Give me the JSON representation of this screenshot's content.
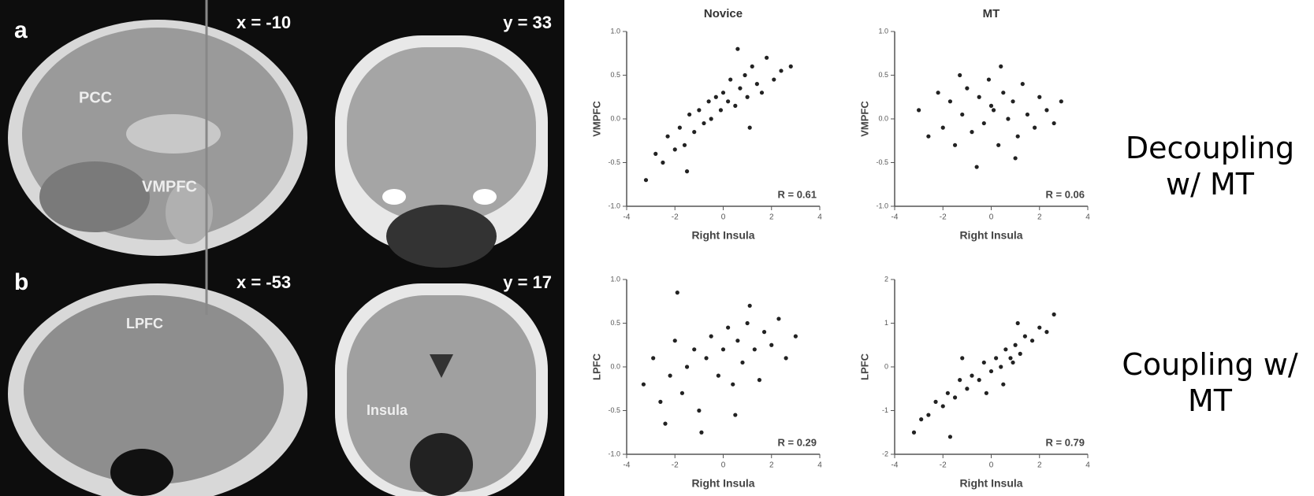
{
  "brain_panels": {
    "a": {
      "letter": "a",
      "sagittal_coord": "x = -10",
      "coronal_coord": "y = 33",
      "labels": [
        "PCC",
        "VMPFC"
      ]
    },
    "b": {
      "letter": "b",
      "sagittal_coord": "x = -53",
      "coronal_coord": "y = 17",
      "labels": [
        "LPFC",
        "Insula"
      ]
    }
  },
  "side_notes": [
    "Decoupling w/ MT",
    "Coupling w/ MT"
  ],
  "chart_data": [
    {
      "type": "scatter",
      "title": "Novice",
      "x_label": "Right Insula",
      "y_label": "VMPFC",
      "annotation": "R = 0.61",
      "color": "#222222",
      "xlim": [
        -4,
        4
      ],
      "ylim": [
        -1,
        1
      ],
      "xticks": [
        -4,
        -2,
        0,
        2,
        4
      ],
      "yticks": [
        {
          "value": -1,
          "label": "-1.0"
        },
        {
          "value": -0.5,
          "label": "-0.5"
        },
        {
          "value": 0,
          "label": "0.0"
        },
        {
          "value": 0.5,
          "label": "0.5"
        },
        {
          "value": 1,
          "label": "1.0"
        }
      ],
      "x": [
        -3.2,
        -2.8,
        -2.5,
        -2.3,
        -2.0,
        -1.8,
        -1.6,
        -1.4,
        -1.2,
        -1.0,
        -0.8,
        -0.6,
        -0.5,
        -0.3,
        -0.1,
        0,
        0.2,
        0.3,
        0.5,
        0.7,
        0.9,
        1.0,
        1.2,
        1.4,
        1.6,
        1.8,
        2.1,
        2.4,
        2.8,
        -1.5,
        0.6,
        1.1
      ],
      "values": [
        -0.7,
        -0.4,
        -0.5,
        -0.2,
        -0.35,
        -0.1,
        -0.3,
        0.05,
        -0.15,
        0.1,
        -0.05,
        0.2,
        0.0,
        0.25,
        0.1,
        0.3,
        0.2,
        0.45,
        0.15,
        0.35,
        0.5,
        0.25,
        0.6,
        0.4,
        0.3,
        0.7,
        0.45,
        0.55,
        0.6,
        -0.6,
        0.8,
        -0.1
      ]
    },
    {
      "type": "scatter",
      "title": "MT",
      "x_label": "Right Insula",
      "y_label": "VMPFC",
      "annotation": "R = 0.06",
      "color": "#222222",
      "xlim": [
        -4,
        4
      ],
      "ylim": [
        -1,
        1
      ],
      "xticks": [
        -4,
        -2,
        0,
        2,
        4
      ],
      "yticks": [
        {
          "value": -1,
          "label": "-1.0"
        },
        {
          "value": -0.5,
          "label": "-0.5"
        },
        {
          "value": 0,
          "label": "0.0"
        },
        {
          "value": 0.5,
          "label": "0.5"
        },
        {
          "value": 1,
          "label": "1.0"
        }
      ],
      "x": [
        -3.0,
        -2.6,
        -2.2,
        -2.0,
        -1.7,
        -1.5,
        -1.2,
        -1.0,
        -0.8,
        -0.5,
        -0.3,
        -0.1,
        0.1,
        0.3,
        0.5,
        0.7,
        0.9,
        1.1,
        1.3,
        1.5,
        1.8,
        2.0,
        2.3,
        2.6,
        -0.6,
        0.4,
        1.0,
        -1.3,
        0.0,
        2.9
      ],
      "values": [
        0.1,
        -0.2,
        0.3,
        -0.1,
        0.2,
        -0.3,
        0.05,
        0.35,
        -0.15,
        0.25,
        -0.05,
        0.45,
        0.1,
        -0.3,
        0.3,
        0.0,
        0.2,
        -0.2,
        0.4,
        0.05,
        -0.1,
        0.25,
        0.1,
        -0.05,
        -0.55,
        0.6,
        -0.45,
        0.5,
        0.15,
        0.2
      ]
    },
    {
      "type": "scatter",
      "x_label": "Right Insula",
      "y_label": "LPFC",
      "annotation": "R = 0.29",
      "color": "#222222",
      "xlim": [
        -4,
        4
      ],
      "ylim": [
        -1,
        1
      ],
      "xticks": [
        -4,
        -2,
        0,
        2,
        4
      ],
      "yticks": [
        {
          "value": -1,
          "label": "-1.0"
        },
        {
          "value": -0.5,
          "label": "-0.5"
        },
        {
          "value": 0,
          "label": "0.0"
        },
        {
          "value": 0.5,
          "label": "0.5"
        },
        {
          "value": 1,
          "label": "1.0"
        }
      ],
      "x": [
        -3.3,
        -2.9,
        -2.6,
        -2.2,
        -2.0,
        -1.7,
        -1.5,
        -1.2,
        -1.0,
        -0.7,
        -0.5,
        -0.2,
        0,
        0.2,
        0.4,
        0.6,
        0.8,
        1.0,
        1.3,
        1.5,
        1.7,
        2.0,
        2.3,
        2.6,
        3.0,
        -1.9,
        -0.9,
        0.5,
        1.1,
        -2.4
      ],
      "values": [
        -0.2,
        0.1,
        -0.4,
        -0.1,
        0.3,
        -0.3,
        0.0,
        0.2,
        -0.5,
        0.1,
        0.35,
        -0.1,
        0.2,
        0.45,
        -0.2,
        0.3,
        0.05,
        0.5,
        0.2,
        -0.15,
        0.4,
        0.25,
        0.55,
        0.1,
        0.35,
        0.85,
        -0.75,
        -0.55,
        0.7,
        -0.65
      ]
    },
    {
      "type": "scatter",
      "x_label": "Right Insula",
      "y_label": "LPFC",
      "annotation": "R = 0.79",
      "color": "#222222",
      "xlim": [
        -4,
        4
      ],
      "ylim": [
        -2,
        2
      ],
      "xticks": [
        -4,
        -2,
        0,
        2,
        4
      ],
      "yticks": [
        -2,
        -1,
        0,
        1,
        2
      ],
      "x": [
        -3.2,
        -2.9,
        -2.6,
        -2.3,
        -2.0,
        -1.8,
        -1.5,
        -1.3,
        -1.0,
        -0.8,
        -0.5,
        -0.3,
        0,
        0.2,
        0.4,
        0.6,
        0.8,
        1.0,
        1.2,
        1.4,
        1.7,
        2.0,
        2.3,
        2.6,
        -1.2,
        0.5,
        1.1,
        -0.2,
        0.9,
        -1.7
      ],
      "values": [
        -1.5,
        -1.2,
        -1.1,
        -0.8,
        -0.9,
        -0.6,
        -0.7,
        -0.3,
        -0.5,
        -0.2,
        -0.3,
        0.1,
        -0.1,
        0.2,
        0.0,
        0.4,
        0.2,
        0.5,
        0.3,
        0.7,
        0.6,
        0.9,
        0.8,
        1.2,
        0.2,
        -0.4,
        1.0,
        -0.6,
        0.1,
        -1.6
      ]
    }
  ]
}
